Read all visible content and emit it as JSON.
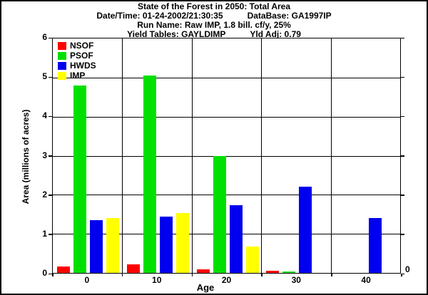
{
  "header": {
    "title": "State of the Forest in 2050: Total Area",
    "datetime": "Date/Time: 01-24-2002/21:30:35",
    "database": "DataBase: GA1997IP",
    "run_name": "Run Name: Raw IMP, 1.8 bill. cf/y, 25%",
    "yield_tables": "Yield Tables: GAYLDIMP",
    "yld_adj": "Yld Adj: 0.79"
  },
  "chart_data": {
    "type": "bar",
    "title": "State of the Forest in 2050: Total Area",
    "xlabel": "Age",
    "ylabel": "Area (millions of acres)",
    "categories": [
      "0",
      "10",
      "20",
      "30",
      "40"
    ],
    "series": [
      {
        "name": "NSOF",
        "color": "#ff0000",
        "values": [
          0.17,
          0.22,
          0.1,
          0.05,
          0
        ]
      },
      {
        "name": "PSOF",
        "color": "#00e000",
        "values": [
          4.8,
          5.05,
          3.0,
          0.03,
          0
        ]
      },
      {
        "name": "HWDS",
        "color": "#0000ee",
        "values": [
          1.35,
          1.45,
          1.73,
          2.2,
          1.4
        ]
      },
      {
        "name": "IMP",
        "color": "#ffff00",
        "values": [
          1.4,
          1.53,
          0.68,
          0,
          0
        ]
      }
    ],
    "ylim": [
      0,
      6
    ],
    "yticks": [
      0,
      1,
      2,
      3,
      4,
      5,
      6
    ],
    "right_axis_bottom_label": "0",
    "grid": true,
    "legend_position": "top-left-inside"
  },
  "colors": {
    "text": "#000000",
    "background": "#ffffff",
    "grid": "#000000"
  }
}
